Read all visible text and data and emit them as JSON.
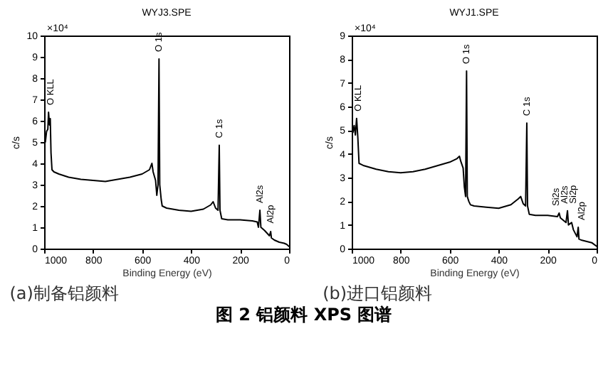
{
  "chart_data": [
    {
      "type": "line",
      "title": "WYJ3.SPE",
      "xlabel": "Binding Energy (eV)",
      "ylabel": "c/s",
      "xlim": [
        1000,
        0
      ],
      "ylim": [
        0,
        10
      ],
      "xticks": [
        1000,
        800,
        600,
        400,
        200,
        0
      ],
      "yticks": [
        0,
        1,
        2,
        3,
        4,
        5,
        6,
        7,
        8,
        9,
        10
      ],
      "grid": false,
      "annotations": [
        "×10⁴",
        "(a)制备铝颜料",
        "图 2  铝颜料 XPS 图谱",
        {
          "text": "O KLL",
          "x": 975,
          "y": 6.4
        },
        {
          "text": "O 1s",
          "x": 531,
          "y": 8.9
        },
        {
          "text": "C 1s",
          "x": 285,
          "y": 4.85
        },
        {
          "text": "Al2s",
          "x": 119,
          "y": 1.8
        },
        {
          "text": "Al2p",
          "x": 75,
          "y": 0.8
        }
      ],
      "series": [
        {
          "color": "#000000",
          "x": [
            1000,
            995,
            990,
            985,
            982,
            978,
            975,
            972,
            968,
            960,
            940,
            900,
            850,
            800,
            750,
            700,
            650,
            600,
            570,
            560,
            555,
            545,
            540,
            535,
            531,
            528,
            522,
            518,
            500,
            450,
            400,
            350,
            320,
            310,
            300,
            290,
            285,
            282,
            275,
            250,
            200,
            150,
            130,
            125,
            119,
            115,
            100,
            80,
            75,
            72,
            60,
            40,
            20,
            10,
            0
          ],
          "values": [
            5.9,
            5.0,
            5.5,
            5.6,
            6.4,
            5.8,
            6.1,
            4.5,
            3.7,
            3.6,
            3.5,
            3.35,
            3.25,
            3.2,
            3.15,
            3.25,
            3.35,
            3.5,
            3.7,
            4.0,
            3.6,
            3.2,
            2.5,
            3.0,
            8.9,
            3.0,
            2.3,
            2.0,
            1.9,
            1.8,
            1.75,
            1.85,
            2.05,
            2.2,
            1.9,
            1.8,
            4.85,
            1.8,
            1.4,
            1.35,
            1.35,
            1.3,
            1.25,
            1.0,
            1.8,
            1.0,
            0.85,
            0.6,
            0.8,
            0.5,
            0.4,
            0.3,
            0.25,
            0.2,
            0.1
          ]
        }
      ]
    },
    {
      "type": "line",
      "title": "WYJ1.SPE",
      "xlabel": "Binding Energy (eV)",
      "ylabel": "c/s",
      "xlim": [
        1000,
        0
      ],
      "ylim": [
        0,
        9
      ],
      "xticks": [
        1000,
        800,
        600,
        400,
        200,
        0
      ],
      "yticks": [
        0,
        1,
        2,
        3,
        4,
        5,
        6,
        7,
        8,
        9
      ],
      "grid": false,
      "annotations": [
        "×10⁴",
        "(b)进口铝颜料",
        {
          "text": "O KLL",
          "x": 975,
          "y": 5.5
        },
        {
          "text": "O 1s",
          "x": 531,
          "y": 7.5
        },
        {
          "text": "C 1s",
          "x": 285,
          "y": 5.3
        },
        {
          "text": "Si2s",
          "x": 153,
          "y": 1.5
        },
        {
          "text": "Al2s",
          "x": 119,
          "y": 1.6
        },
        {
          "text": "Si2p",
          "x": 102,
          "y": 1.1
        },
        {
          "text": "Al2p",
          "x": 75,
          "y": 0.9
        }
      ],
      "series": [
        {
          "color": "#000000",
          "x": [
            1000,
            995,
            990,
            985,
            980,
            975,
            970,
            950,
            900,
            850,
            800,
            750,
            700,
            650,
            600,
            570,
            560,
            555,
            545,
            540,
            535,
            531,
            528,
            522,
            515,
            500,
            450,
            400,
            350,
            320,
            310,
            300,
            290,
            285,
            282,
            275,
            250,
            200,
            160,
            153,
            148,
            125,
            119,
            115,
            102,
            95,
            80,
            75,
            72,
            60,
            40,
            20,
            0
          ],
          "values": [
            5.5,
            4.9,
            5.2,
            4.8,
            5.5,
            4.7,
            3.6,
            3.5,
            3.35,
            3.25,
            3.2,
            3.25,
            3.35,
            3.5,
            3.65,
            3.8,
            3.9,
            3.7,
            3.4,
            2.6,
            2.2,
            7.5,
            2.2,
            2.0,
            1.85,
            1.8,
            1.75,
            1.7,
            1.85,
            2.1,
            2.2,
            1.9,
            1.8,
            5.3,
            1.8,
            1.45,
            1.4,
            1.4,
            1.35,
            1.5,
            1.3,
            1.1,
            1.6,
            1.0,
            1.1,
            0.8,
            0.5,
            0.9,
            0.4,
            0.35,
            0.3,
            0.25,
            0.1
          ]
        }
      ]
    }
  ]
}
